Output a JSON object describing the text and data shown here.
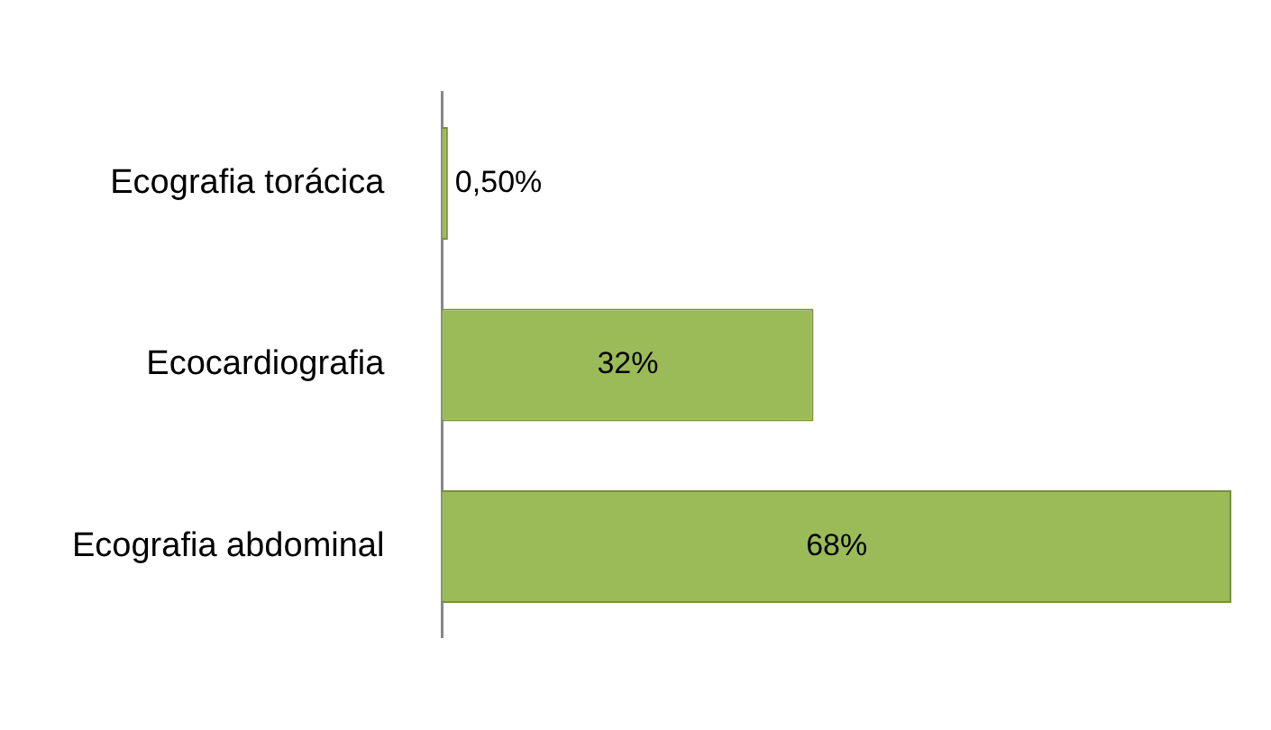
{
  "chart_data": {
    "type": "bar",
    "orientation": "horizontal",
    "categories": [
      "Ecografia torácica",
      "Ecocardiografia",
      "Ecografia abdominal"
    ],
    "values": [
      0.5,
      32,
      68
    ],
    "value_labels": [
      "0,50%",
      "32%",
      "68%"
    ],
    "color": "#9bbb59",
    "grid": false,
    "legend": false
  }
}
